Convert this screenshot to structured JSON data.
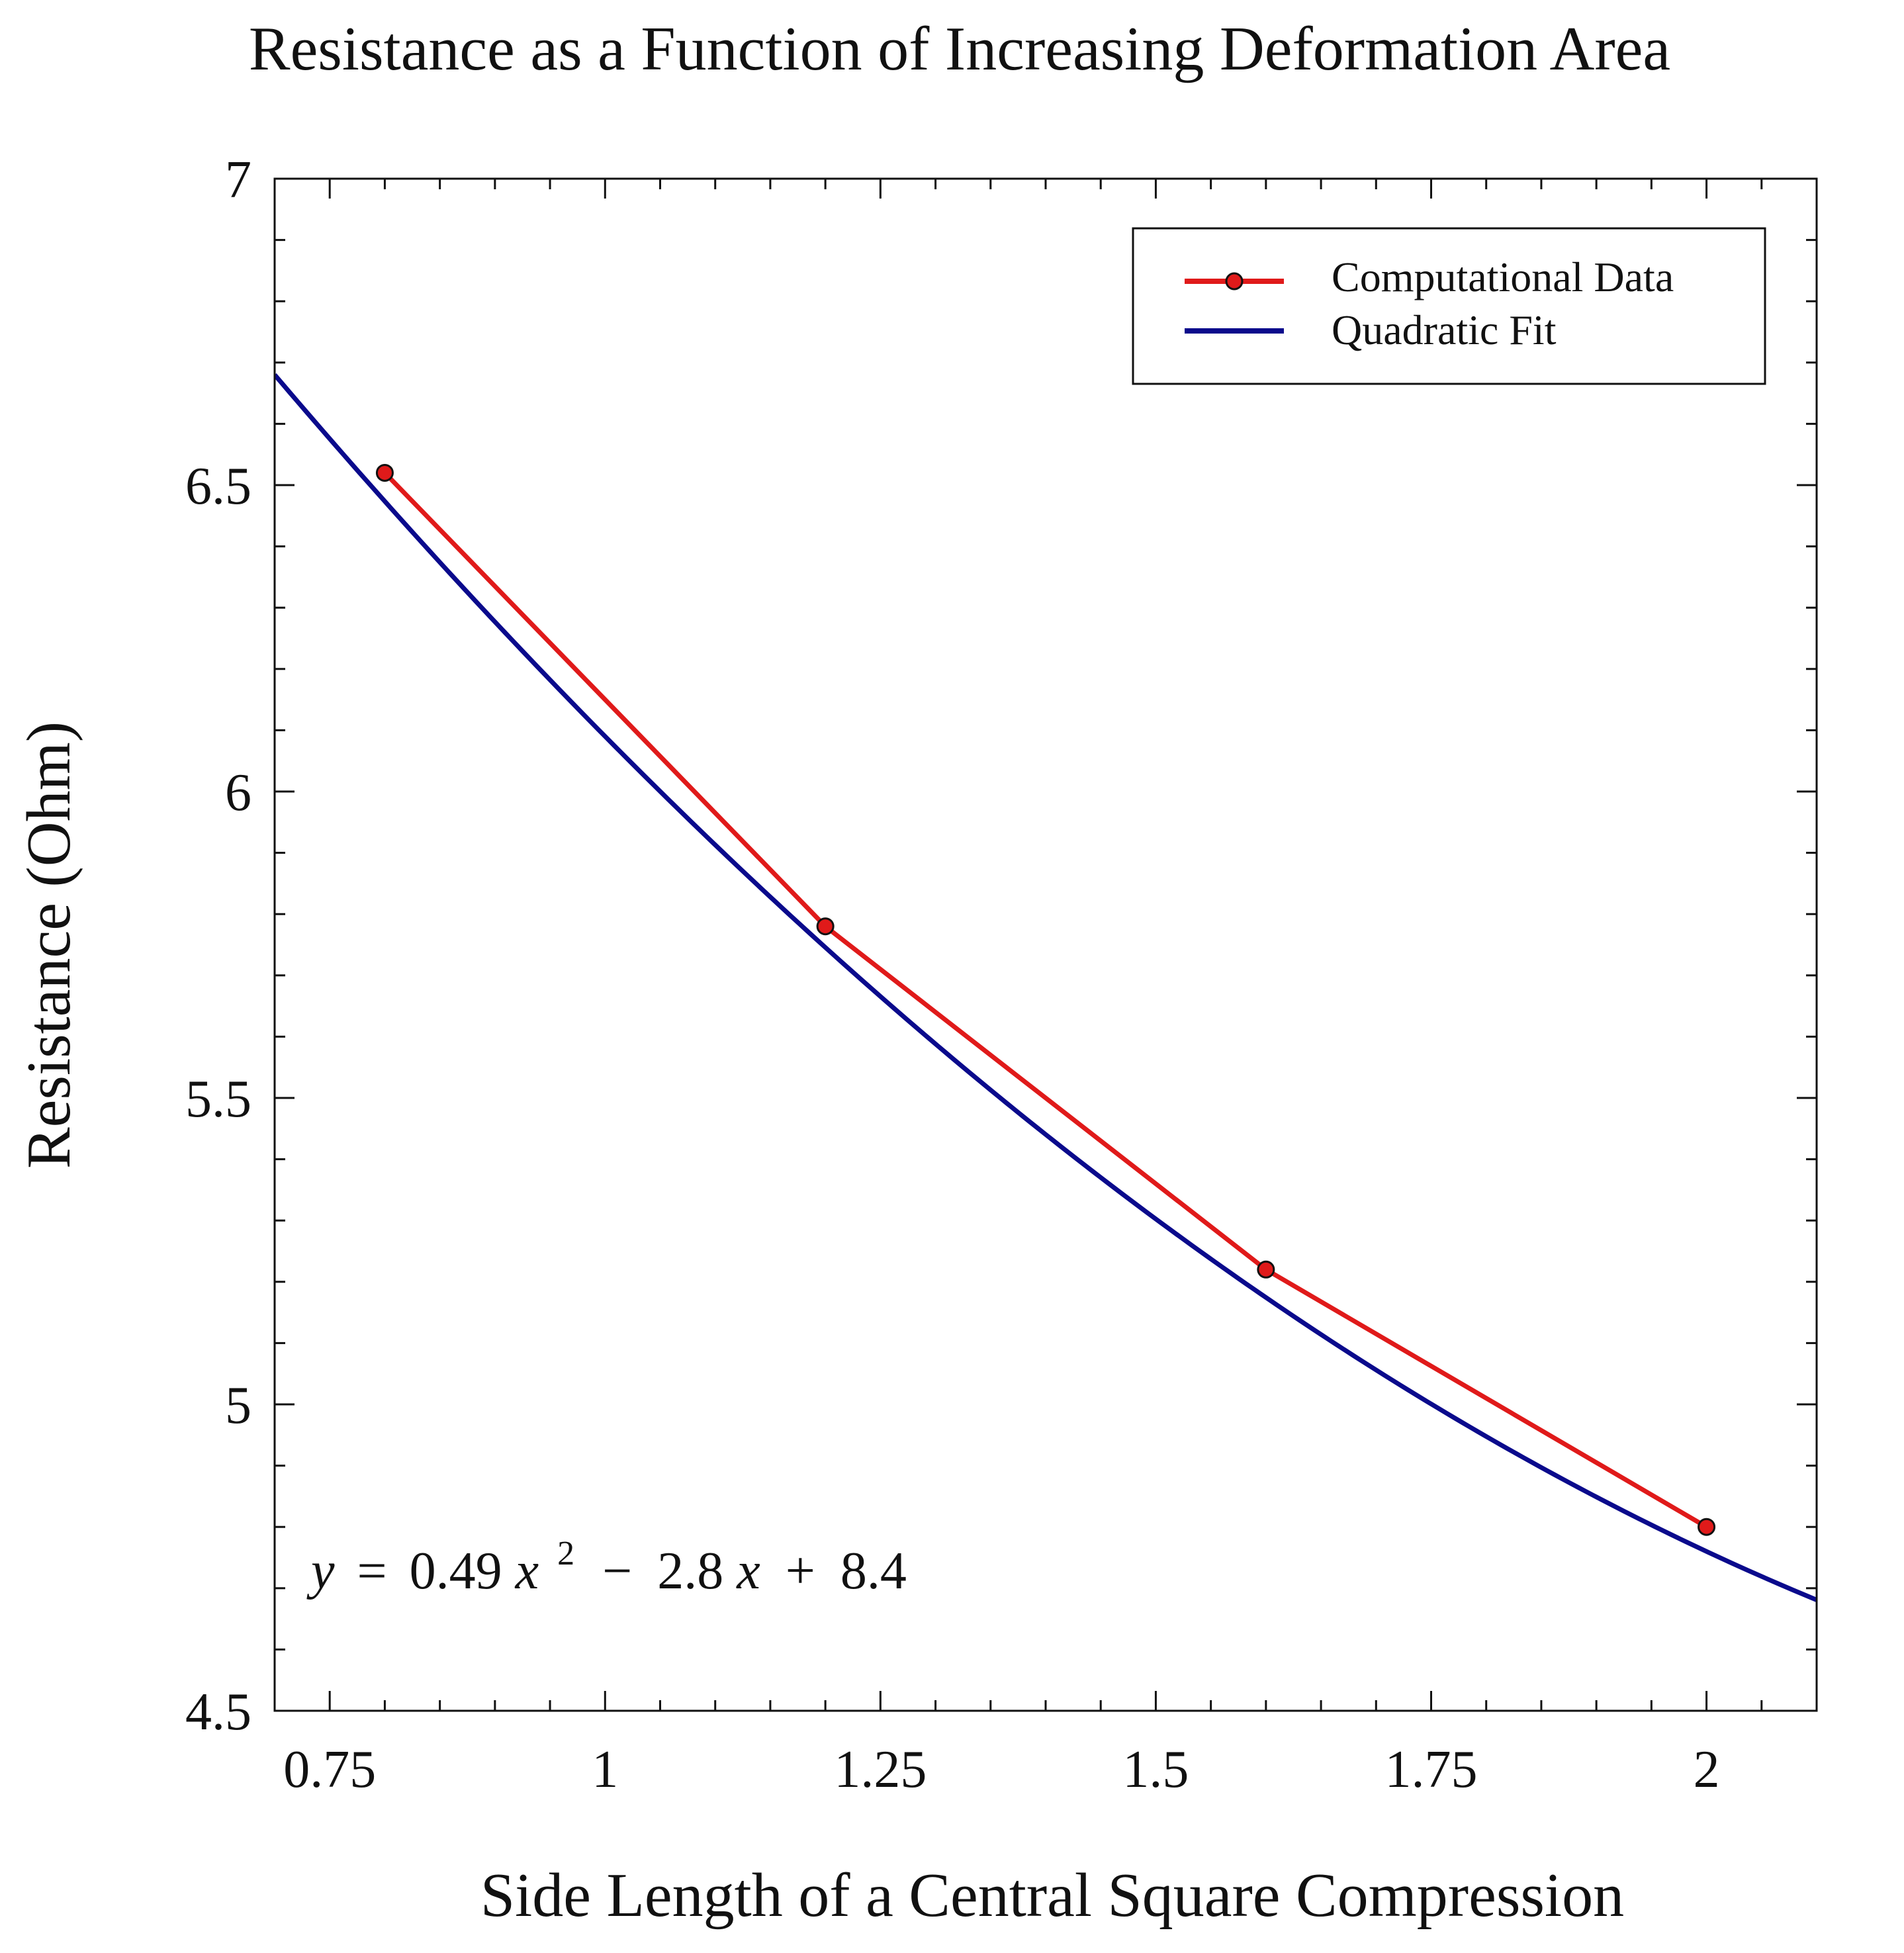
{
  "chart_data": {
    "type": "line",
    "title": "Resistance as a Function of Increasing Deformation Area",
    "xlabel": "Side Length of a Central Square Compression",
    "ylabel": "Resistance (Ohm)",
    "xlim": [
      0.7,
      2.1
    ],
    "ylim": [
      4.5,
      7.0
    ],
    "xticks": [
      0.75,
      1.0,
      1.25,
      1.5,
      1.75,
      2.0
    ],
    "xtick_labels": [
      "0.75",
      "1",
      "1.25",
      "1.5",
      "1.75",
      "2"
    ],
    "yticks": [
      4.5,
      5.0,
      5.5,
      6.0,
      6.5,
      7.0
    ],
    "ytick_labels": [
      "4.5",
      "5",
      "5.5",
      "6",
      "6.5",
      "7"
    ],
    "x_minor_step": 0.05,
    "y_minor_step": 0.1,
    "series": [
      {
        "name": "Computational Data",
        "kind": "line+markers",
        "color": "#e01a1a",
        "x": [
          0.8,
          1.2,
          1.6,
          2.0
        ],
        "y": [
          6.52,
          5.78,
          5.22,
          4.8
        ]
      },
      {
        "name": "Quadratic Fit",
        "kind": "curve",
        "color": "#0a0a8c",
        "coefficients": [
          0.49,
          -2.8,
          8.4
        ]
      }
    ],
    "legend": {
      "position": "top-right",
      "entries": [
        "Computational Data",
        "Quadratic Fit"
      ]
    },
    "annotation": {
      "y": "y",
      "eq": "=",
      "a": "0.49",
      "x1": "x",
      "sup": "2",
      "minus": "−",
      "b": "2.8",
      "x2": "x",
      "plus": "+",
      "c": "8.4"
    }
  }
}
